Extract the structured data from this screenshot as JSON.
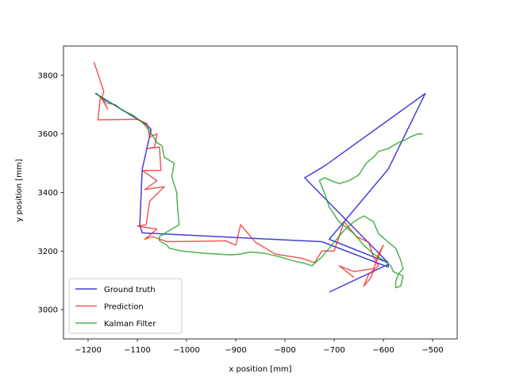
{
  "chart_data": {
    "type": "line",
    "title": "",
    "xlabel": "x position [mm]",
    "ylabel": "y position [mm]",
    "xlim": [
      -1250,
      -450
    ],
    "ylim": [
      2900,
      3900
    ],
    "xticks": [
      -1200,
      -1100,
      -1000,
      -900,
      -800,
      -700,
      -600,
      -500
    ],
    "yticks": [
      3000,
      3200,
      3400,
      3600,
      3800
    ],
    "xtick_labels": [
      "−1200",
      "−1100",
      "−1000",
      "−900",
      "−800",
      "−700",
      "−600",
      "−500"
    ],
    "ytick_labels": [
      "3000",
      "3200",
      "3400",
      "3600",
      "3800"
    ],
    "grid": false,
    "legend_position": "lower-left",
    "series": [
      {
        "name": "Ground truth",
        "color": "#0000cc",
        "points": [
          [
            -1185,
            3738
          ],
          [
            -1080,
            3630
          ],
          [
            -1072,
            3615
          ],
          [
            -1090,
            3480
          ],
          [
            -1095,
            3290
          ],
          [
            -1090,
            3262
          ],
          [
            -725,
            3232
          ],
          [
            -590,
            3145
          ],
          [
            -590,
            3155
          ],
          [
            -710,
            3060
          ]
        ],
        "points2": [
          [
            -590,
            3160
          ],
          [
            -760,
            3450
          ],
          [
            -720,
            3490
          ],
          [
            -515,
            3738
          ],
          [
            -590,
            3480
          ],
          [
            -710,
            3240
          ],
          [
            -590,
            3160
          ]
        ]
      },
      {
        "name": "Prediction",
        "color": "#ee2222",
        "points": [
          [
            -1188,
            3845
          ],
          [
            -1168,
            3745
          ],
          [
            -1172,
            3725
          ],
          [
            -1160,
            3685
          ],
          [
            -1175,
            3728
          ],
          [
            -1180,
            3648
          ],
          [
            -1100,
            3650
          ],
          [
            -1080,
            3635
          ],
          [
            -1075,
            3590
          ],
          [
            -1060,
            3600
          ],
          [
            -1065,
            3555
          ],
          [
            -1080,
            3550
          ],
          [
            -1055,
            3555
          ],
          [
            -1052,
            3475
          ],
          [
            -1090,
            3475
          ],
          [
            -1060,
            3440
          ],
          [
            -1085,
            3410
          ],
          [
            -1045,
            3420
          ],
          [
            -1075,
            3370
          ],
          [
            -1082,
            3290
          ],
          [
            -1100,
            3285
          ],
          [
            -1060,
            3275
          ],
          [
            -1085,
            3240
          ],
          [
            -1070,
            3250
          ],
          [
            -1040,
            3232
          ],
          [
            -920,
            3235
          ],
          [
            -900,
            3220
          ],
          [
            -890,
            3290
          ],
          [
            -860,
            3230
          ],
          [
            -820,
            3190
          ],
          [
            -765,
            3175
          ],
          [
            -740,
            3160
          ],
          [
            -725,
            3200
          ],
          [
            -700,
            3200
          ],
          [
            -690,
            3250
          ],
          [
            -680,
            3300
          ],
          [
            -655,
            3250
          ],
          [
            -630,
            3230
          ],
          [
            -620,
            3180
          ],
          [
            -610,
            3150
          ],
          [
            -630,
            3120
          ],
          [
            -640,
            3080
          ],
          [
            -625,
            3110
          ],
          [
            -610,
            3190
          ],
          [
            -600,
            3220
          ],
          [
            -620,
            3140
          ],
          [
            -660,
            3130
          ],
          [
            -690,
            3150
          ],
          [
            -660,
            3110
          ]
        ]
      },
      {
        "name": "Kalman Filter",
        "color": "#119911",
        "points": [
          [
            -1185,
            3740
          ],
          [
            -1160,
            3705
          ],
          [
            -1145,
            3700
          ],
          [
            -1130,
            3680
          ],
          [
            -1110,
            3665
          ],
          [
            -1090,
            3640
          ],
          [
            -1075,
            3610
          ],
          [
            -1060,
            3570
          ],
          [
            -1050,
            3560
          ],
          [
            -1045,
            3520
          ],
          [
            -1025,
            3500
          ],
          [
            -1030,
            3455
          ],
          [
            -1020,
            3400
          ],
          [
            -1018,
            3345
          ],
          [
            -1015,
            3290
          ],
          [
            -1035,
            3270
          ],
          [
            -1055,
            3250
          ],
          [
            -1055,
            3235
          ],
          [
            -1040,
            3220
          ],
          [
            -1035,
            3210
          ],
          [
            -1010,
            3200
          ],
          [
            -960,
            3192
          ],
          [
            -910,
            3187
          ],
          [
            -890,
            3190
          ],
          [
            -870,
            3197
          ],
          [
            -840,
            3192
          ],
          [
            -810,
            3180
          ],
          [
            -780,
            3165
          ],
          [
            -760,
            3158
          ],
          [
            -745,
            3150
          ],
          [
            -725,
            3180
          ],
          [
            -700,
            3230
          ],
          [
            -680,
            3270
          ],
          [
            -660,
            3300
          ],
          [
            -640,
            3320
          ],
          [
            -620,
            3300
          ],
          [
            -610,
            3260
          ],
          [
            -590,
            3230
          ],
          [
            -575,
            3210
          ],
          [
            -565,
            3170
          ],
          [
            -560,
            3140
          ],
          [
            -570,
            3120
          ],
          [
            -575,
            3095
          ],
          [
            -575,
            3075
          ],
          [
            -565,
            3080
          ],
          [
            -560,
            3115
          ],
          [
            -580,
            3130
          ],
          [
            -585,
            3150
          ],
          [
            -600,
            3170
          ],
          [
            -620,
            3190
          ],
          [
            -640,
            3220
          ],
          [
            -660,
            3260
          ],
          [
            -690,
            3300
          ],
          [
            -710,
            3350
          ],
          [
            -720,
            3400
          ],
          [
            -730,
            3440
          ],
          [
            -720,
            3450
          ],
          [
            -690,
            3430
          ],
          [
            -670,
            3440
          ],
          [
            -650,
            3460
          ],
          [
            -635,
            3500
          ],
          [
            -620,
            3520
          ],
          [
            -610,
            3540
          ],
          [
            -590,
            3550
          ],
          [
            -570,
            3570
          ],
          [
            -555,
            3580
          ],
          [
            -545,
            3590
          ],
          [
            -530,
            3600
          ],
          [
            -520,
            3600
          ]
        ]
      }
    ]
  }
}
